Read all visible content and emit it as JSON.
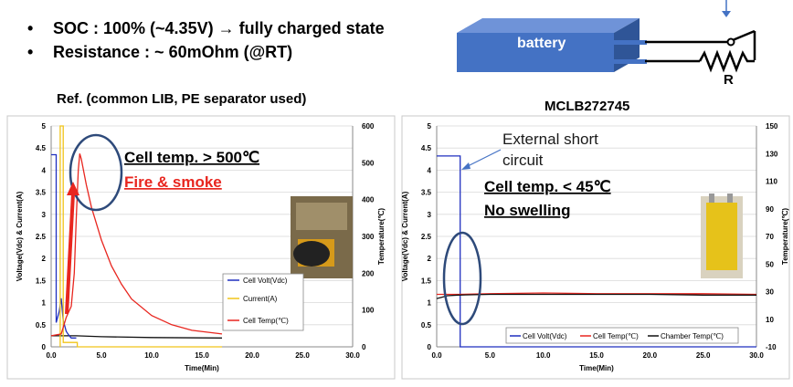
{
  "header": {
    "bullet_soc": "SOC : 100% (~4.35V) → fully charged state",
    "bullet_resistance": "Resistance :  ~ 60mOhm (@RT)",
    "battery_label": "battery",
    "resistor_label": "R"
  },
  "chart_titles": {
    "left": "Ref. (common LIB, PE separator used)",
    "right": "MCLB272745"
  },
  "annotations": {
    "left_temp": "Cell temp.  > 500℃",
    "left_fire": "Fire & smoke",
    "right_short": "External short",
    "right_short2": "circuit",
    "right_temp": "Cell temp.  < 45℃",
    "right_swelling": "No swelling"
  },
  "colors": {
    "voltage": "#1f2fbf",
    "current": "#f0c419",
    "cell_temp": "#e8261f",
    "chamber_temp": "#111111",
    "ellipse": "#2e4a7a",
    "battery": "#4472c4",
    "arrow": "#e8261f"
  },
  "chart_data": [
    {
      "type": "line",
      "title": "Ref. (common LIB, PE separator used)",
      "xlabel": "Time(Min)",
      "ylabel": "Voltage(Vdc) & Current(A)",
      "y2label": "Temperature(℃)",
      "xlim": [
        0,
        30
      ],
      "ylim": [
        0,
        5
      ],
      "y2lim": [
        0,
        600
      ],
      "x_ticks": [
        "0.0",
        "5.0",
        "10.0",
        "15.0",
        "20.0",
        "25.0",
        "30.0"
      ],
      "y_ticks": [
        "0",
        "0.5",
        "1",
        "1.5",
        "2",
        "2.5",
        "3",
        "3.5",
        "4",
        "4.5",
        "5"
      ],
      "y2_ticks": [
        "0",
        "100",
        "200",
        "300",
        "400",
        "500",
        "600"
      ],
      "legend_position": "lower-right",
      "series": [
        {
          "name": "Cell Volt(Vdc)",
          "axis": "left",
          "x": [
            0,
            0.5,
            0.5,
            0.8,
            1.0,
            1.2,
            1.5,
            1.8,
            2.0,
            2.5
          ],
          "y": [
            4.35,
            4.35,
            0.55,
            0.8,
            1.1,
            0.6,
            0.35,
            0.25,
            0.2,
            0.2
          ]
        },
        {
          "name": "Current(A)",
          "axis": "left",
          "x": [
            0.9,
            0.9,
            1.0,
            1.2,
            1.2,
            2.6,
            2.6,
            17
          ],
          "y": [
            0,
            5,
            5,
            5,
            0.1,
            0.1,
            0,
            0
          ]
        },
        {
          "name": "Cell Temp(℃)",
          "axis": "right",
          "x": [
            0,
            1.0,
            1.5,
            2.0,
            2.3,
            2.5,
            2.7,
            2.85,
            3.0,
            3.5,
            4.0,
            5.0,
            6.0,
            7.0,
            8.0,
            10.0,
            12.0,
            14.0,
            17.0
          ],
          "y": [
            30,
            35,
            80,
            110,
            200,
            350,
            480,
            525,
            510,
            440,
            380,
            290,
            220,
            170,
            130,
            85,
            60,
            45,
            35
          ]
        }
      ],
      "extra_series": [
        {
          "axis": "left",
          "x": [
            0,
            1.5,
            2.5,
            5,
            10,
            17
          ],
          "y": [
            0.25,
            0.25,
            0.25,
            0.23,
            0.21,
            0.2
          ]
        }
      ]
    },
    {
      "type": "line",
      "title": "MCLB272745",
      "xlabel": "Time(Min)",
      "ylabel": "Voltage(Vdc) & Current(A)",
      "y2label": "Temperature(℃)",
      "xlim": [
        0,
        30
      ],
      "ylim": [
        0,
        5
      ],
      "y2lim": [
        -10,
        150
      ],
      "x_ticks": [
        "0.0",
        "5.0",
        "10.0",
        "15.0",
        "20.0",
        "25.0",
        "30.0"
      ],
      "y_ticks": [
        "0",
        "0.5",
        "1",
        "1.5",
        "2",
        "2.5",
        "3",
        "3.5",
        "4",
        "4.5",
        "5"
      ],
      "y2_ticks": [
        "-10",
        "10",
        "30",
        "50",
        "70",
        "90",
        "110",
        "130",
        "150"
      ],
      "legend_position": "bottom",
      "series": [
        {
          "name": "Cell Volt(Vdc)",
          "axis": "left",
          "x": [
            0,
            2.2,
            2.2,
            30
          ],
          "y": [
            4.32,
            4.32,
            0,
            0
          ]
        },
        {
          "name": "Cell Temp(℃)",
          "axis": "right",
          "x": [
            0,
            2,
            5,
            10,
            15,
            20,
            25,
            30
          ],
          "y": [
            28,
            28,
            28.5,
            29,
            28.5,
            28.5,
            28.5,
            28
          ]
        },
        {
          "name": "Chamber Temp(℃)",
          "axis": "right",
          "x": [
            0,
            0.5,
            1,
            2,
            5,
            10,
            15,
            20,
            25,
            30
          ],
          "y": [
            25,
            26,
            27,
            27.5,
            28,
            28,
            28,
            28,
            27.5,
            27.5
          ]
        }
      ]
    }
  ]
}
